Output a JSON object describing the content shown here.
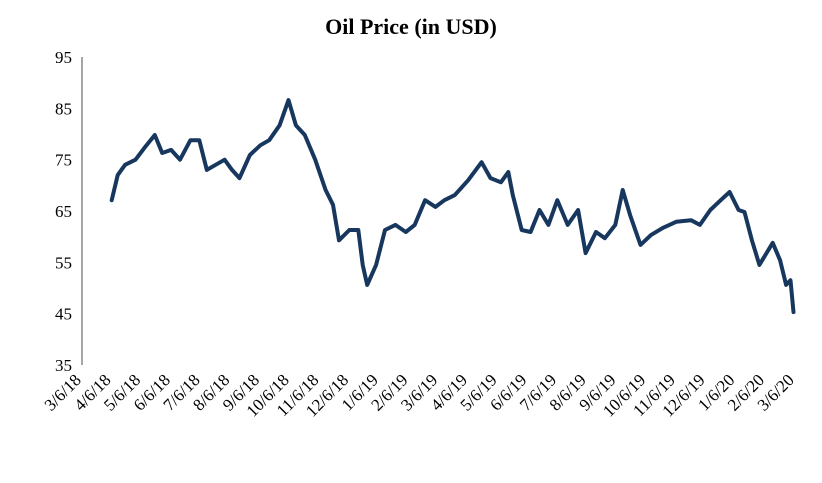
{
  "chart_data": {
    "type": "line",
    "title": "Oil Price (in USD)",
    "xlabel": "",
    "ylabel": "",
    "ylim": [
      35,
      95
    ],
    "yticks": [
      35,
      45,
      55,
      65,
      75,
      85,
      95
    ],
    "xticks": [
      "3/6/18",
      "4/6/18",
      "5/6/18",
      "6/6/18",
      "7/6/18",
      "8/6/18",
      "9/6/18",
      "10/6/18",
      "11/6/18",
      "12/6/18",
      "1/6/19",
      "2/6/19",
      "3/6/19",
      "4/6/19",
      "5/6/19",
      "6/6/19",
      "7/6/19",
      "8/6/19",
      "9/6/19",
      "10/6/19",
      "11/6/19",
      "12/6/19",
      "1/6/20",
      "2/6/20",
      "3/6/20"
    ],
    "x_units": "months since 3/6/18",
    "color": "#17375e",
    "grid": false,
    "series": [
      {
        "name": "Oil Price",
        "points": [
          [
            1.0,
            67.1
          ],
          [
            1.2,
            72
          ],
          [
            1.45,
            74
          ],
          [
            1.8,
            75
          ],
          [
            2.1,
            77.3
          ],
          [
            2.45,
            79.8
          ],
          [
            2.7,
            76.3
          ],
          [
            3.0,
            76.9
          ],
          [
            3.3,
            75
          ],
          [
            3.65,
            78.8
          ],
          [
            3.95,
            78.8
          ],
          [
            4.2,
            73
          ],
          [
            4.5,
            74
          ],
          [
            4.8,
            75
          ],
          [
            5.05,
            73
          ],
          [
            5.3,
            71.4
          ],
          [
            5.65,
            75.9
          ],
          [
            6.0,
            77.8
          ],
          [
            6.3,
            78.8
          ],
          [
            6.65,
            81.7
          ],
          [
            6.95,
            86.6
          ],
          [
            7.2,
            81.7
          ],
          [
            7.5,
            79.8
          ],
          [
            7.85,
            75
          ],
          [
            8.2,
            69.1
          ],
          [
            8.45,
            66.2
          ],
          [
            8.65,
            59.3
          ],
          [
            9.0,
            61.3
          ],
          [
            9.3,
            61.3
          ],
          [
            9.45,
            54.5
          ],
          [
            9.6,
            50.6
          ],
          [
            9.9,
            54.5
          ],
          [
            10.2,
            61.3
          ],
          [
            10.55,
            62.3
          ],
          [
            10.9,
            60.9
          ],
          [
            11.2,
            62.3
          ],
          [
            11.55,
            67.1
          ],
          [
            11.9,
            65.8
          ],
          [
            12.2,
            67.1
          ],
          [
            12.55,
            68.1
          ],
          [
            13.0,
            71
          ],
          [
            13.45,
            74.5
          ],
          [
            13.75,
            71.4
          ],
          [
            14.1,
            70.6
          ],
          [
            14.35,
            72.6
          ],
          [
            14.5,
            68.1
          ],
          [
            14.8,
            61.3
          ],
          [
            15.1,
            60.9
          ],
          [
            15.4,
            65.2
          ],
          [
            15.7,
            62.3
          ],
          [
            16.0,
            67.1
          ],
          [
            16.35,
            62.3
          ],
          [
            16.7,
            65.2
          ],
          [
            16.95,
            56.8
          ],
          [
            17.3,
            60.9
          ],
          [
            17.6,
            59.7
          ],
          [
            17.95,
            62.3
          ],
          [
            18.2,
            69.1
          ],
          [
            18.45,
            64.2
          ],
          [
            18.8,
            58.4
          ],
          [
            19.15,
            60.3
          ],
          [
            19.55,
            61.7
          ],
          [
            20.0,
            62.9
          ],
          [
            20.5,
            63.2
          ],
          [
            20.8,
            62.3
          ],
          [
            21.15,
            65.2
          ],
          [
            21.5,
            67.1
          ],
          [
            21.8,
            68.7
          ],
          [
            22.1,
            65.2
          ],
          [
            22.3,
            64.8
          ],
          [
            22.55,
            59.3
          ],
          [
            22.8,
            54.5
          ],
          [
            23.0,
            56.4
          ],
          [
            23.25,
            58.8
          ],
          [
            23.5,
            55.4
          ],
          [
            23.7,
            50.6
          ],
          [
            23.85,
            51.5
          ],
          [
            23.95,
            45.3
          ]
        ]
      }
    ]
  }
}
